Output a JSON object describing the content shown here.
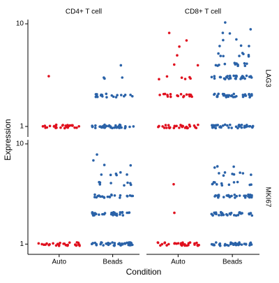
{
  "chart_data": {
    "type": "strip",
    "x_label": "Condition",
    "y_label": "Expression",
    "column_titles": [
      "CD4+ T cell",
      "CD8+ T cell"
    ],
    "row_titles": [
      "LAG3",
      "MKI67"
    ],
    "categories": [
      "Auto",
      "Beads"
    ],
    "colors": [
      "#e0101e",
      "#2a62a8"
    ],
    "log_scale": true,
    "ylim": [
      0.79,
      11
    ],
    "yticks": [
      1,
      10
    ],
    "panels": [
      {
        "values": [
          [
            1,
            1,
            1,
            1,
            1,
            1,
            1,
            1,
            1,
            1,
            1,
            1,
            1,
            1,
            1,
            1,
            1,
            1,
            1,
            1,
            1,
            1,
            1,
            1,
            1,
            1,
            1,
            1,
            1,
            1,
            3
          ],
          [
            1,
            1,
            1,
            1,
            1,
            1,
            1,
            1,
            1,
            1,
            1,
            1,
            1,
            1,
            1,
            1,
            1,
            1,
            1,
            1,
            1,
            1,
            1,
            1,
            1,
            1,
            1,
            1,
            1,
            1,
            1,
            1,
            1,
            1,
            1,
            1,
            1,
            1,
            1,
            1,
            2,
            2,
            2,
            2,
            2,
            2,
            2,
            2,
            2,
            2,
            2,
            2,
            2,
            2,
            2,
            2,
            2,
            2,
            2,
            2,
            3,
            3,
            3,
            4
          ]
        ]
      },
      {
        "values": [
          [
            1,
            1,
            1,
            1,
            1,
            1,
            1,
            1,
            1,
            1,
            1,
            1,
            1,
            1,
            1,
            1,
            1,
            1,
            1,
            1,
            1,
            1,
            1,
            1,
            1,
            1,
            1,
            1,
            1,
            1,
            2,
            2,
            2,
            2,
            2,
            2,
            2,
            2,
            2,
            2,
            2,
            2,
            2,
            2,
            2,
            2,
            2,
            2,
            3,
            3,
            3,
            3,
            3,
            3,
            4,
            4,
            5,
            6,
            7,
            8
          ],
          [
            1,
            1,
            1,
            1,
            1,
            1,
            1,
            1,
            1,
            1,
            1,
            1,
            1,
            1,
            1,
            1,
            1,
            1,
            1,
            1,
            1,
            1,
            1,
            1,
            1,
            1,
            1,
            1,
            1,
            1,
            1,
            1,
            1,
            1,
            1,
            1,
            1,
            1,
            1,
            1,
            2,
            2,
            2,
            2,
            2,
            2,
            2,
            2,
            2,
            2,
            2,
            2,
            2,
            2,
            2,
            2,
            2,
            2,
            2,
            2,
            2,
            2,
            2,
            2,
            2,
            2,
            2,
            2,
            2,
            2,
            2,
            2,
            2,
            2,
            2,
            3,
            3,
            3,
            3,
            3,
            3,
            3,
            3,
            3,
            3,
            3,
            3,
            3,
            3,
            3,
            3,
            3,
            3,
            3,
            3,
            3,
            3,
            3,
            3,
            3,
            3,
            3,
            3,
            3,
            3,
            4,
            4,
            4,
            4,
            4,
            4,
            4,
            4,
            4,
            4,
            4,
            4,
            5,
            5,
            5,
            5,
            5,
            5,
            5,
            5,
            6,
            6,
            6,
            7,
            7,
            8,
            8,
            9,
            10
          ]
        ]
      },
      {
        "values": [
          [
            1,
            1,
            1,
            1,
            1,
            1,
            1,
            1,
            1,
            1,
            1,
            1,
            1,
            1,
            1,
            1,
            1,
            1,
            1,
            1,
            1,
            1,
            1,
            1,
            1,
            1,
            1,
            1,
            1,
            1
          ],
          [
            1,
            1,
            1,
            1,
            1,
            1,
            1,
            1,
            1,
            1,
            1,
            1,
            1,
            1,
            1,
            1,
            1,
            1,
            1,
            1,
            1,
            1,
            1,
            1,
            1,
            1,
            1,
            1,
            1,
            1,
            1,
            1,
            1,
            1,
            1,
            1,
            1,
            1,
            1,
            1,
            2,
            2,
            2,
            2,
            2,
            2,
            2,
            2,
            2,
            2,
            2,
            2,
            2,
            2,
            2,
            2,
            2,
            2,
            2,
            2,
            2,
            2,
            2,
            2,
            2,
            2,
            2,
            2,
            2,
            2,
            2,
            2,
            2,
            2,
            2,
            3,
            3,
            3,
            3,
            3,
            3,
            3,
            3,
            3,
            3,
            3,
            3,
            3,
            3,
            3,
            3,
            3,
            3,
            3,
            3,
            3,
            3,
            4,
            4,
            4,
            4,
            4,
            4,
            4,
            4,
            5,
            5,
            5,
            5,
            5,
            5,
            6,
            6,
            7,
            8
          ]
        ]
      },
      {
        "values": [
          [
            1,
            1,
            1,
            1,
            1,
            1,
            1,
            1,
            1,
            1,
            1,
            1,
            1,
            1,
            1,
            1,
            1,
            1,
            1,
            1,
            1,
            1,
            1,
            1,
            1,
            1,
            1,
            1,
            1,
            1,
            2,
            4
          ],
          [
            1,
            1,
            1,
            1,
            1,
            1,
            1,
            1,
            1,
            1,
            1,
            1,
            1,
            1,
            1,
            1,
            1,
            1,
            1,
            1,
            1,
            1,
            1,
            1,
            1,
            1,
            1,
            1,
            1,
            1,
            1,
            1,
            1,
            1,
            1,
            1,
            1,
            1,
            1,
            1,
            2,
            2,
            2,
            2,
            2,
            2,
            2,
            2,
            2,
            2,
            2,
            2,
            2,
            2,
            2,
            2,
            2,
            2,
            2,
            2,
            2,
            2,
            2,
            2,
            2,
            2,
            2,
            2,
            2,
            2,
            2,
            2,
            2,
            2,
            2,
            3,
            3,
            3,
            3,
            3,
            3,
            3,
            3,
            3,
            3,
            3,
            3,
            3,
            3,
            3,
            3,
            3,
            3,
            3,
            3,
            3,
            3,
            3,
            3,
            3,
            3,
            3,
            3,
            3,
            3,
            4,
            4,
            4,
            4,
            4,
            4,
            4,
            4,
            4,
            4,
            4,
            4,
            5,
            5,
            5,
            5,
            5,
            5,
            5,
            5,
            6,
            6,
            6
          ]
        ]
      }
    ]
  }
}
